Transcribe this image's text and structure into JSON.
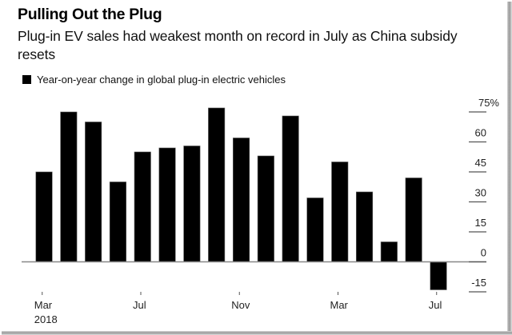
{
  "header": {
    "title": "Pulling Out the Plug",
    "subtitle": "Plug-in EV sales had weakest month on record in July as China subsidy resets"
  },
  "colors": {
    "bar": "#000000",
    "axis": "#888888",
    "tick": "#555555"
  },
  "chart_data": {
    "type": "bar",
    "title": "Pulling Out the Plug",
    "subtitle": "Plug-in EV sales had weakest month on record in July as China subsidy resets",
    "xlabel": "",
    "ylabel": "",
    "legend": {
      "position": "top-left",
      "entries": [
        "Year-on-year change in global plug-in electric vehicles"
      ]
    },
    "categories": [
      "Mar 2018",
      "Apr 2018",
      "May 2018",
      "Jun 2018",
      "Jul 2018",
      "Aug 2018",
      "Sep 2018",
      "Oct 2018",
      "Nov 2018",
      "Dec 2018",
      "Jan 2019",
      "Feb 2019",
      "Mar 2019",
      "Apr 2019",
      "May 2019",
      "Jun 2019",
      "Jul 2019"
    ],
    "series": [
      {
        "name": "Year-on-year change in global plug-in electric vehicles",
        "values": [
          45,
          75,
          70,
          40,
          55,
          57,
          58,
          77,
          62,
          53,
          73,
          32,
          50,
          35,
          10,
          42,
          -14
        ]
      }
    ],
    "ylim": [
      -15,
      75
    ],
    "y_ticks": [
      {
        "value": 75,
        "label": "75%"
      },
      {
        "value": 60,
        "label": "60"
      },
      {
        "value": 45,
        "label": "45"
      },
      {
        "value": 30,
        "label": "30"
      },
      {
        "value": 15,
        "label": "15"
      },
      {
        "value": 0,
        "label": "0"
      },
      {
        "value": -15,
        "label": "-15"
      }
    ],
    "y_axis_side": "right",
    "x_ticks": [
      {
        "index": 0,
        "label": "Mar",
        "sublabel": "2018"
      },
      {
        "index": 4,
        "label": "Jul",
        "sublabel": ""
      },
      {
        "index": 8,
        "label": "Nov",
        "sublabel": ""
      },
      {
        "index": 12,
        "label": "Mar",
        "sublabel": ""
      },
      {
        "index": 16,
        "label": "Jul",
        "sublabel": ""
      }
    ],
    "grid": false
  }
}
